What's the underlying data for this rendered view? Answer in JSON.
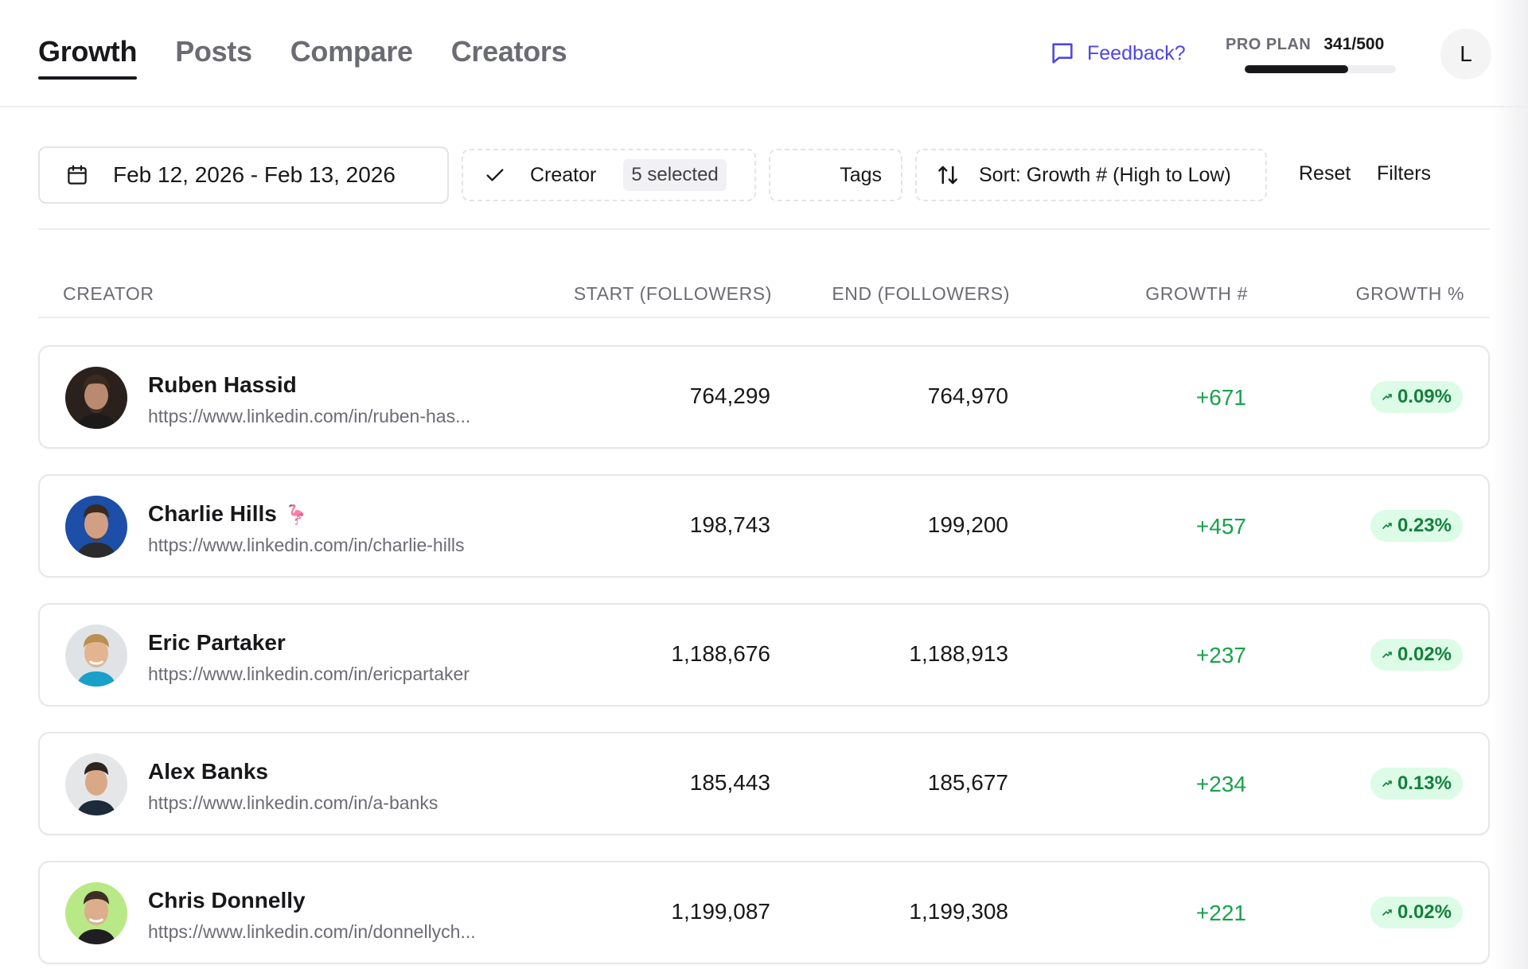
{
  "tabs": [
    {
      "label": "Growth",
      "active": true
    },
    {
      "label": "Posts",
      "active": false
    },
    {
      "label": "Compare",
      "active": false
    },
    {
      "label": "Creators",
      "active": false
    }
  ],
  "header": {
    "feedback_label": "Feedback?",
    "plan_label": "PRO PLAN",
    "plan_usage": "341/500",
    "plan_usage_fraction": 0.682,
    "user_initial": "L"
  },
  "filters": {
    "date_range": "Feb 12, 2026 - Feb 13, 2026",
    "creator_label": "Creator",
    "creator_selected": "5 selected",
    "tags_label": "Tags",
    "sort_label": "Sort: Growth # (High to Low)",
    "reset_label": "Reset",
    "filters_label": "Filters"
  },
  "table": {
    "headers": [
      "CREATOR",
      "START (FOLLOWERS)",
      "END (FOLLOWERS)",
      "GROWTH #",
      "GROWTH %"
    ],
    "rows": [
      {
        "name": "Ruben Hassid",
        "url": "https://www.linkedin.com/in/ruben-has...",
        "start": "764,299",
        "end": "764,970",
        "growth": "+671",
        "growth_pct": "0.09%",
        "emoji": ""
      },
      {
        "name": "Charlie Hills",
        "url": "https://www.linkedin.com/in/charlie-hills",
        "start": "198,743",
        "end": "199,200",
        "growth": "+457",
        "growth_pct": "0.23%",
        "emoji": "🦩"
      },
      {
        "name": "Eric Partaker",
        "url": "https://www.linkedin.com/in/ericpartaker",
        "start": "1,188,676",
        "end": "1,188,913",
        "growth": "+237",
        "growth_pct": "0.02%",
        "emoji": ""
      },
      {
        "name": "Alex Banks",
        "url": "https://www.linkedin.com/in/a-banks",
        "start": "185,443",
        "end": "185,677",
        "growth": "+234",
        "growth_pct": "0.13%",
        "emoji": ""
      },
      {
        "name": "Chris Donnelly",
        "url": "https://www.linkedin.com/in/donnellych...",
        "start": "1,199,087",
        "end": "1,199,308",
        "growth": "+221",
        "growth_pct": "0.02%",
        "emoji": ""
      }
    ]
  },
  "colors": {
    "accent": "#4f46e5",
    "growth_green": "#16a34a",
    "pill_bg": "#dcfce7"
  }
}
